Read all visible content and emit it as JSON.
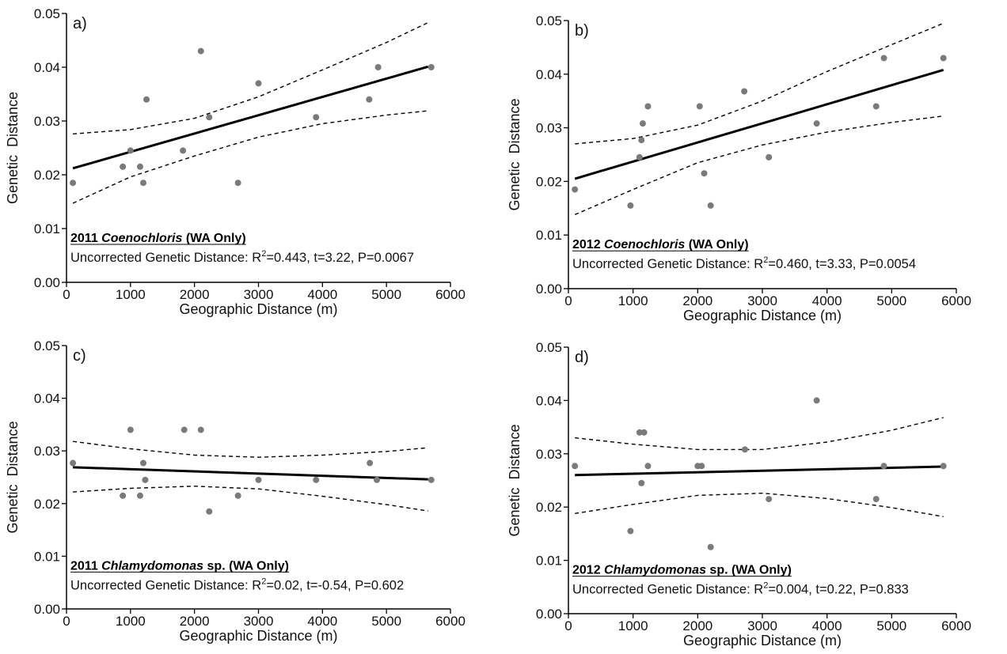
{
  "chart_data": [
    {
      "type": "scatter",
      "panel_label": "a)",
      "title_year": "2011",
      "title_genus": "Coenochloris",
      "title_suffix": "(WA Only)",
      "stat_prefix": "Uncorrected Genetic Distance: R",
      "stat_sup": "2",
      "stat_rest": "=0.443, t=3.22, P=0.0067",
      "xlabel": "Geographic Distance (m)",
      "ylabel": "Genetic  Distance",
      "xlim": [
        0,
        6000
      ],
      "ylim": [
        0,
        0.05
      ],
      "x_ticks": [
        "0",
        "1000",
        "2000",
        "3000",
        "4000",
        "5000",
        "6000"
      ],
      "y_ticks": [
        "0.00",
        "0.01",
        "0.02",
        "0.03",
        "0.04",
        "0.05"
      ],
      "points": [
        [
          100,
          0.0185
        ],
        [
          880,
          0.0215
        ],
        [
          1000,
          0.0245
        ],
        [
          1150,
          0.0215
        ],
        [
          1200,
          0.0185
        ],
        [
          1250,
          0.034
        ],
        [
          1820,
          0.0245
        ],
        [
          2100,
          0.043
        ],
        [
          2230,
          0.0307
        ],
        [
          2680,
          0.0185
        ],
        [
          3000,
          0.037
        ],
        [
          3900,
          0.0307
        ],
        [
          4730,
          0.034
        ],
        [
          4870,
          0.04
        ],
        [
          5700,
          0.04
        ]
      ],
      "fit_line": [
        [
          100,
          0.0212
        ],
        [
          5650,
          0.0401
        ]
      ],
      "ci_upper": [
        [
          100,
          0.0276
        ],
        [
          1000,
          0.0284
        ],
        [
          2000,
          0.0305
        ],
        [
          3000,
          0.0345
        ],
        [
          4000,
          0.0395
        ],
        [
          5000,
          0.0446
        ],
        [
          5650,
          0.0483
        ]
      ],
      "ci_lower": [
        [
          100,
          0.0147
        ],
        [
          1000,
          0.0196
        ],
        [
          2000,
          0.0235
        ],
        [
          3000,
          0.027
        ],
        [
          4000,
          0.0295
        ],
        [
          5000,
          0.0311
        ],
        [
          5650,
          0.0319
        ]
      ]
    },
    {
      "type": "scatter",
      "panel_label": "b)",
      "title_year": "2012",
      "title_genus": "Coenochloris",
      "title_suffix": "(WA Only)",
      "stat_prefix": "Uncorrected Genetic Distance: R",
      "stat_sup": "2",
      "stat_rest": "=0.460, t=3.33, P=0.0054",
      "xlabel": "Geographic Distance (m)",
      "ylabel": "Genetic  Distance",
      "xlim": [
        0,
        6000
      ],
      "ylim": [
        0,
        0.05
      ],
      "x_ticks": [
        "0",
        "1000",
        "2000",
        "3000",
        "4000",
        "5000",
        "6000"
      ],
      "y_ticks": [
        "0.00",
        "0.01",
        "0.02",
        "0.03",
        "0.04",
        "0.05"
      ],
      "points": [
        [
          100,
          0.0185
        ],
        [
          960,
          0.0155
        ],
        [
          1100,
          0.0245
        ],
        [
          1130,
          0.0277
        ],
        [
          1150,
          0.0308
        ],
        [
          1230,
          0.034
        ],
        [
          2030,
          0.034
        ],
        [
          2100,
          0.0215
        ],
        [
          2200,
          0.0155
        ],
        [
          2720,
          0.0368
        ],
        [
          3100,
          0.0245
        ],
        [
          3840,
          0.0308
        ],
        [
          4760,
          0.034
        ],
        [
          4880,
          0.043
        ],
        [
          5800,
          0.043
        ]
      ],
      "fit_line": [
        [
          100,
          0.0205
        ],
        [
          5800,
          0.0408
        ]
      ],
      "ci_upper": [
        [
          100,
          0.027
        ],
        [
          1000,
          0.028
        ],
        [
          2000,
          0.0305
        ],
        [
          3000,
          0.035
        ],
        [
          4000,
          0.0405
        ],
        [
          5000,
          0.0455
        ],
        [
          5800,
          0.0495
        ]
      ],
      "ci_lower": [
        [
          100,
          0.0138
        ],
        [
          1000,
          0.0185
        ],
        [
          2000,
          0.0235
        ],
        [
          3000,
          0.0268
        ],
        [
          4000,
          0.0292
        ],
        [
          5000,
          0.031
        ],
        [
          5800,
          0.0322
        ]
      ]
    },
    {
      "type": "scatter",
      "panel_label": "c)",
      "title_year": "2011",
      "title_genus": "Chlamydomonas",
      "title_suffix": "sp. (WA Only)",
      "stat_prefix": "Uncorrected Genetic Distance: R",
      "stat_sup": "2",
      "stat_rest": "=0.02, t=-0.54, P=0.602",
      "xlabel": "Geographic Distance (m)",
      "ylabel": "Genetic  Distance",
      "xlim": [
        0,
        6000
      ],
      "ylim": [
        0,
        0.05
      ],
      "x_ticks": [
        "0",
        "1000",
        "2000",
        "3000",
        "4000",
        "5000",
        "6000"
      ],
      "y_ticks": [
        "0.00",
        "0.01",
        "0.02",
        "0.03",
        "0.04",
        "0.05"
      ],
      "points": [
        [
          100,
          0.0277
        ],
        [
          880,
          0.0215
        ],
        [
          1000,
          0.034
        ],
        [
          1150,
          0.0215
        ],
        [
          1200,
          0.0277
        ],
        [
          1230,
          0.0245
        ],
        [
          1840,
          0.034
        ],
        [
          2100,
          0.034
        ],
        [
          2230,
          0.0185
        ],
        [
          2680,
          0.0215
        ],
        [
          3000,
          0.0245
        ],
        [
          3900,
          0.0245
        ],
        [
          4740,
          0.0277
        ],
        [
          4850,
          0.0245
        ],
        [
          5700,
          0.0245
        ]
      ],
      "fit_line": [
        [
          100,
          0.0269
        ],
        [
          5650,
          0.0246
        ]
      ],
      "ci_upper": [
        [
          100,
          0.0318
        ],
        [
          1000,
          0.0304
        ],
        [
          2000,
          0.0292
        ],
        [
          3000,
          0.0288
        ],
        [
          4000,
          0.0292
        ],
        [
          5000,
          0.0299
        ],
        [
          5650,
          0.0306
        ]
      ],
      "ci_lower": [
        [
          100,
          0.0222
        ],
        [
          1000,
          0.0229
        ],
        [
          2000,
          0.0233
        ],
        [
          3000,
          0.0228
        ],
        [
          4000,
          0.0214
        ],
        [
          5000,
          0.0198
        ],
        [
          5650,
          0.0186
        ]
      ]
    },
    {
      "type": "scatter",
      "panel_label": "d)",
      "title_year": "2012",
      "title_genus": "Chlamydomonas",
      "title_suffix": "sp. (WA Only)",
      "stat_prefix": "Uncorrected Genetic Distance: R",
      "stat_sup": "2",
      "stat_rest": "=0.004, t=0.22, P=0.833",
      "xlabel": "Geographic Distance (m)",
      "ylabel": "Genetic  Distance",
      "xlim": [
        0,
        6000
      ],
      "ylim": [
        0,
        0.05
      ],
      "x_ticks": [
        "0",
        "1000",
        "2000",
        "3000",
        "4000",
        "5000",
        "6000"
      ],
      "y_ticks": [
        "0.00",
        "0.01",
        "0.02",
        "0.03",
        "0.04",
        "0.05"
      ],
      "points": [
        [
          100,
          0.0277
        ],
        [
          960,
          0.0155
        ],
        [
          1100,
          0.034
        ],
        [
          1130,
          0.0245
        ],
        [
          1170,
          0.034
        ],
        [
          1230,
          0.0277
        ],
        [
          2000,
          0.0277
        ],
        [
          2060,
          0.0277
        ],
        [
          2200,
          0.0125
        ],
        [
          2730,
          0.0308
        ],
        [
          3100,
          0.0215
        ],
        [
          3840,
          0.04
        ],
        [
          4760,
          0.0215
        ],
        [
          4880,
          0.0277
        ],
        [
          5800,
          0.0277
        ]
      ],
      "fit_line": [
        [
          100,
          0.026
        ],
        [
          5800,
          0.0276
        ]
      ],
      "ci_upper": [
        [
          100,
          0.033
        ],
        [
          1000,
          0.0318
        ],
        [
          2000,
          0.0308
        ],
        [
          3000,
          0.0308
        ],
        [
          4000,
          0.0322
        ],
        [
          5000,
          0.0344
        ],
        [
          5800,
          0.0368
        ]
      ],
      "ci_lower": [
        [
          100,
          0.0188
        ],
        [
          1000,
          0.0205
        ],
        [
          2000,
          0.0222
        ],
        [
          3000,
          0.0226
        ],
        [
          4000,
          0.0216
        ],
        [
          5000,
          0.0199
        ],
        [
          5800,
          0.0182
        ]
      ]
    }
  ]
}
